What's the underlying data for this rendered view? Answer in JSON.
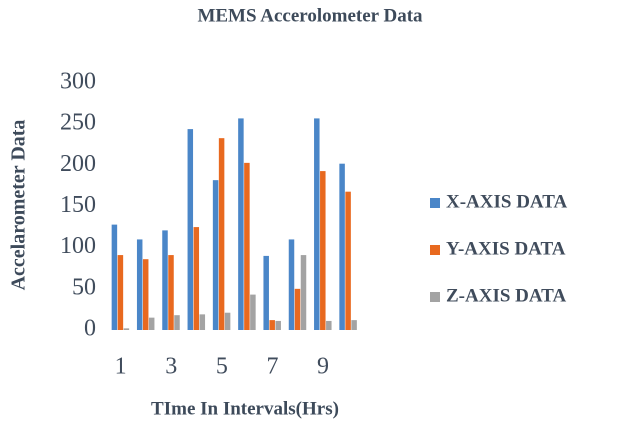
{
  "chart_data": {
    "type": "bar",
    "title": "MEMS Accerolometer Data",
    "x_label": "TIme In Intervals(Hrs)",
    "y_label": "Accelarometer Data",
    "categories": [
      "1",
      null,
      "3",
      null,
      "5",
      null,
      "7",
      null,
      "9",
      null
    ],
    "series": [
      {
        "name": "X-AXIS DATA",
        "color": "#4a86c8",
        "values": [
          128,
          110,
          121,
          244,
          182,
          257,
          90,
          110,
          257,
          202
        ]
      },
      {
        "name": "Y-AXIS DATA",
        "color": "#e8691f",
        "values": [
          91,
          86,
          91,
          125,
          233,
          203,
          12,
          50,
          193,
          168
        ]
      },
      {
        "name": "Z-AXIS DATA",
        "color": "#a3a3a3",
        "values": [
          2,
          15,
          18,
          19,
          21,
          43,
          11,
          91,
          11,
          12
        ]
      }
    ],
    "ylim": [
      0,
      300
    ],
    "yticks": [
      0,
      50,
      100,
      150,
      200,
      250,
      300
    ],
    "grid": false,
    "legend": "right"
  }
}
